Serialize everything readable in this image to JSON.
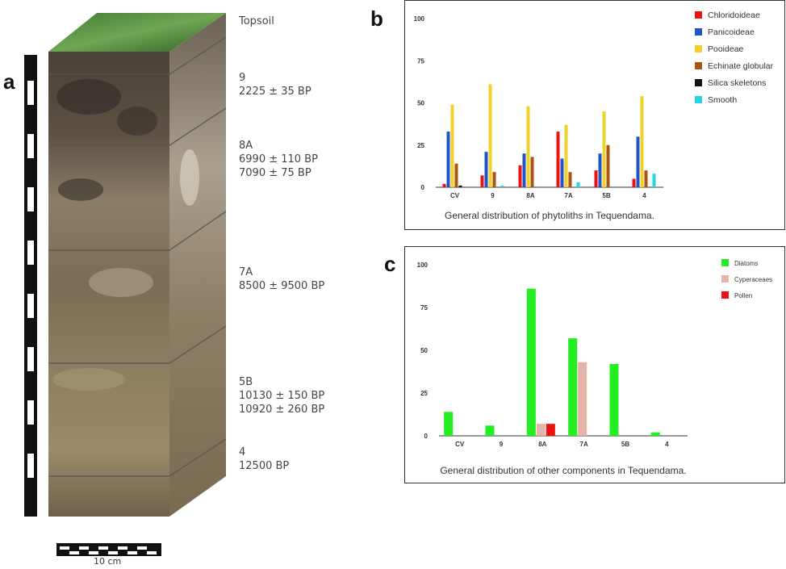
{
  "panels": {
    "a": {
      "letter": "a",
      "labels": [
        {
          "layer": "Topsoil",
          "dates": []
        },
        {
          "layer": "9",
          "dates": [
            "2225 ± 35 BP"
          ]
        },
        {
          "layer": "8A",
          "dates": [
            "6990 ± 110 BP",
            "7090 ± 75 BP"
          ]
        },
        {
          "layer": "7A",
          "dates": [
            "8500 ± 9500 BP"
          ]
        },
        {
          "layer": "5B",
          "dates": [
            "10130 ± 150 BP",
            "10920 ± 260 BP"
          ]
        },
        {
          "layer": "4",
          "dates": [
            "12500 BP"
          ]
        }
      ],
      "scale_label": "10 cm"
    },
    "b": {
      "letter": "b"
    },
    "c": {
      "letter": "c"
    }
  },
  "chart_data": [
    {
      "type": "bar",
      "title": "General distribution of phytoliths in Tequendama.",
      "categories": [
        "CV",
        "9",
        "8A",
        "7A",
        "5B",
        "4"
      ],
      "ylim": [
        0,
        100
      ],
      "yticks": [
        0,
        25,
        50,
        75,
        100
      ],
      "grid": false,
      "legend": "right",
      "series": [
        {
          "name": "Chloridoideae",
          "color": "#ee1111",
          "values": [
            2,
            7,
            13,
            33,
            10,
            5
          ]
        },
        {
          "name": "Panicoideae",
          "color": "#1f55c8",
          "values": [
            33,
            21,
            20,
            17,
            20,
            30
          ]
        },
        {
          "name": "Pooideae",
          "color": "#f2d22a",
          "values": [
            49,
            61,
            48,
            37,
            45,
            54
          ]
        },
        {
          "name": "Echinate globular",
          "color": "#a9540f",
          "values": [
            14,
            9,
            18,
            9,
            25,
            10
          ]
        },
        {
          "name": "Silica skeletons",
          "color": "#111111",
          "values": [
            1,
            0,
            0,
            0,
            0,
            0
          ]
        },
        {
          "name": "Smooth",
          "color": "#22d6e6",
          "values": [
            0,
            1,
            0,
            3,
            0,
            8
          ]
        }
      ]
    },
    {
      "type": "bar",
      "title": "General distribution of other components in Tequendama.",
      "categories": [
        "CV",
        "9",
        "8A",
        "7A",
        "5B",
        "4"
      ],
      "ylim": [
        0,
        100
      ],
      "yticks": [
        0,
        25,
        50,
        75,
        100
      ],
      "grid": false,
      "legend": "right",
      "series": [
        {
          "name": "Diatoms",
          "color": "#22ee22",
          "values": [
            14,
            6,
            86,
            57,
            42,
            2
          ]
        },
        {
          "name": "Cyperaceaes",
          "color": "#e5b4a8",
          "values": [
            0,
            0,
            7,
            43,
            0,
            0
          ]
        },
        {
          "name": "Pollen",
          "color": "#ee1111",
          "values": [
            0,
            0,
            7,
            0,
            0,
            0
          ]
        }
      ]
    }
  ]
}
